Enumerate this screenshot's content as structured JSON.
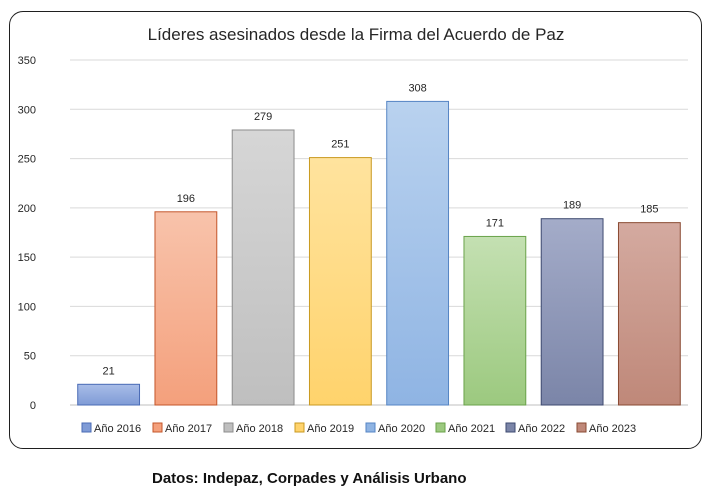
{
  "chart_data": {
    "type": "bar",
    "title": "Líderes asesinados desde la Firma del Acuerdo de Paz",
    "xlabel": "",
    "ylabel": "",
    "ylim": [
      0,
      350
    ],
    "yticks": [
      0,
      50,
      100,
      150,
      200,
      250,
      300,
      350
    ],
    "grid": true,
    "legend_position": "bottom",
    "data_labels": true,
    "categories": [
      "Año 2016",
      "Año 2017",
      "Año 2018",
      "Año 2019",
      "Año 2020",
      "Año 2021",
      "Año 2022",
      "Año 2023"
    ],
    "values": [
      21,
      196,
      279,
      251,
      308,
      171,
      189,
      185
    ],
    "colors": [
      {
        "top": "#a9bde8",
        "bottom": "#7f9bd6",
        "edge": "#4a6bb5"
      },
      {
        "top": "#f8c3ab",
        "bottom": "#f4a07c",
        "edge": "#c4562a"
      },
      {
        "top": "#d6d6d6",
        "bottom": "#bfbfbf",
        "edge": "#8c8c8c"
      },
      {
        "top": "#ffe39e",
        "bottom": "#ffd36c",
        "edge": "#c99a20"
      },
      {
        "top": "#b9d2ef",
        "bottom": "#8fb4e3",
        "edge": "#5585c4"
      },
      {
        "top": "#c4e0b2",
        "bottom": "#9cc97f",
        "edge": "#6aa24a"
      },
      {
        "top": "#a4acc9",
        "bottom": "#7b85a8",
        "edge": "#3e4a70"
      },
      {
        "top": "#d4aaa0",
        "bottom": "#bf8879",
        "edge": "#8a4a32"
      }
    ]
  },
  "source_note": "Datos: Indepaz, Corpades y Análisis Urbano"
}
